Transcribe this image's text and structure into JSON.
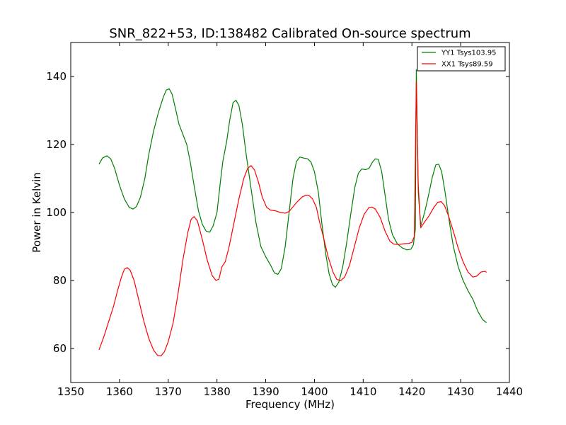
{
  "chart_data": {
    "type": "line",
    "title": "SNR_822+53, ID:138482 Calibrated On-source spectrum",
    "xlabel": "Frequency (MHz)",
    "ylabel": "Power in Kelvin",
    "xlim": [
      1350,
      1440
    ],
    "ylim": [
      50,
      150
    ],
    "xticks": [
      1350,
      1360,
      1370,
      1380,
      1390,
      1400,
      1410,
      1420,
      1430,
      1440
    ],
    "yticks": [
      60,
      80,
      100,
      120,
      140
    ],
    "grid": false,
    "legend_position": "top-right",
    "series": [
      {
        "name": "YY1 Tsys103.95",
        "color": "#008000",
        "points": [
          [
            1355.8,
            114.2
          ],
          [
            1356.5,
            116.0
          ],
          [
            1357.4,
            116.7
          ],
          [
            1358.2,
            115.8
          ],
          [
            1359.0,
            113.0
          ],
          [
            1360.0,
            108.0
          ],
          [
            1361.0,
            104.0
          ],
          [
            1362.0,
            101.5
          ],
          [
            1362.8,
            101.0
          ],
          [
            1363.5,
            101.8
          ],
          [
            1364.3,
            104.5
          ],
          [
            1365.2,
            110.0
          ],
          [
            1366.0,
            117.0
          ],
          [
            1367.0,
            124.0
          ],
          [
            1368.0,
            129.5
          ],
          [
            1369.0,
            134.0
          ],
          [
            1369.6,
            136.0
          ],
          [
            1370.2,
            136.4
          ],
          [
            1370.8,
            134.8
          ],
          [
            1371.5,
            130.5
          ],
          [
            1372.2,
            126.0
          ],
          [
            1373.0,
            123.0
          ],
          [
            1373.8,
            120.0
          ],
          [
            1374.5,
            115.0
          ],
          [
            1375.3,
            108.0
          ],
          [
            1376.2,
            100.5
          ],
          [
            1377.0,
            96.5
          ],
          [
            1377.8,
            94.5
          ],
          [
            1378.5,
            94.2
          ],
          [
            1379.2,
            96.0
          ],
          [
            1380.0,
            100.0
          ],
          [
            1380.7,
            109.0
          ],
          [
            1381.2,
            115.0
          ],
          [
            1382.0,
            121.0
          ],
          [
            1382.6,
            127.0
          ],
          [
            1383.3,
            132.3
          ],
          [
            1383.9,
            133.0
          ],
          [
            1384.5,
            131.5
          ],
          [
            1385.2,
            126.0
          ],
          [
            1386.0,
            117.0
          ],
          [
            1387.0,
            107.0
          ],
          [
            1388.0,
            97.0
          ],
          [
            1389.0,
            90.0
          ],
          [
            1390.0,
            87.0
          ],
          [
            1391.0,
            84.5
          ],
          [
            1391.8,
            82.2
          ],
          [
            1392.5,
            81.8
          ],
          [
            1393.2,
            83.5
          ],
          [
            1394.0,
            90.0
          ],
          [
            1394.8,
            100.0
          ],
          [
            1395.6,
            110.0
          ],
          [
            1396.3,
            115.0
          ],
          [
            1397.0,
            116.3
          ],
          [
            1397.8,
            116.0
          ],
          [
            1398.6,
            115.8
          ],
          [
            1399.3,
            114.8
          ],
          [
            1400.0,
            112.0
          ],
          [
            1400.8,
            106.0
          ],
          [
            1401.5,
            97.0
          ],
          [
            1402.3,
            88.0
          ],
          [
            1403.0,
            82.0
          ],
          [
            1403.7,
            78.8
          ],
          [
            1404.3,
            78.0
          ],
          [
            1405.0,
            79.5
          ],
          [
            1405.8,
            84.0
          ],
          [
            1406.6,
            91.0
          ],
          [
            1407.5,
            100.0
          ],
          [
            1408.3,
            107.5
          ],
          [
            1409.0,
            111.5
          ],
          [
            1409.7,
            112.8
          ],
          [
            1410.5,
            112.6
          ],
          [
            1411.2,
            113.0
          ],
          [
            1411.9,
            114.8
          ],
          [
            1412.5,
            115.8
          ],
          [
            1413.1,
            115.6
          ],
          [
            1413.8,
            112.0
          ],
          [
            1414.5,
            105.0
          ],
          [
            1415.2,
            98.0
          ],
          [
            1416.0,
            93.5
          ],
          [
            1417.0,
            90.8
          ],
          [
            1418.0,
            89.6
          ],
          [
            1419.0,
            89.0
          ],
          [
            1419.8,
            89.2
          ],
          [
            1420.3,
            90.5
          ],
          [
            1420.7,
            95.0
          ],
          [
            1420.9,
            142.0
          ],
          [
            1421.3,
            106.0
          ],
          [
            1421.8,
            96.0
          ],
          [
            1422.6,
            100.0
          ],
          [
            1423.4,
            105.0
          ],
          [
            1424.2,
            110.5
          ],
          [
            1424.9,
            114.0
          ],
          [
            1425.5,
            114.2
          ],
          [
            1426.1,
            112.0
          ],
          [
            1426.8,
            106.0
          ],
          [
            1427.6,
            98.0
          ],
          [
            1428.5,
            90.0
          ],
          [
            1429.5,
            84.0
          ],
          [
            1430.5,
            80.0
          ],
          [
            1431.5,
            77.0
          ],
          [
            1432.5,
            74.5
          ],
          [
            1433.5,
            71.0
          ],
          [
            1434.5,
            68.5
          ],
          [
            1435.3,
            67.6
          ]
        ]
      },
      {
        "name": "XX1 Tsys89.59",
        "color": "#ff0000",
        "points": [
          [
            1355.8,
            59.6
          ],
          [
            1356.8,
            63.5
          ],
          [
            1357.8,
            68.0
          ],
          [
            1358.8,
            72.5
          ],
          [
            1359.6,
            77.0
          ],
          [
            1360.4,
            81.0
          ],
          [
            1361.0,
            83.3
          ],
          [
            1361.6,
            83.8
          ],
          [
            1362.2,
            83.0
          ],
          [
            1363.0,
            80.0
          ],
          [
            1364.0,
            74.0
          ],
          [
            1365.0,
            68.0
          ],
          [
            1366.0,
            63.0
          ],
          [
            1367.0,
            59.5
          ],
          [
            1367.8,
            58.0
          ],
          [
            1368.5,
            57.8
          ],
          [
            1369.2,
            59.0
          ],
          [
            1370.0,
            62.0
          ],
          [
            1371.0,
            67.5
          ],
          [
            1372.0,
            76.0
          ],
          [
            1373.0,
            86.0
          ],
          [
            1374.0,
            94.0
          ],
          [
            1374.7,
            98.0
          ],
          [
            1375.3,
            98.8
          ],
          [
            1376.0,
            97.5
          ],
          [
            1377.0,
            92.0
          ],
          [
            1378.0,
            86.0
          ],
          [
            1379.0,
            81.5
          ],
          [
            1379.8,
            80.0
          ],
          [
            1380.4,
            80.4
          ],
          [
            1381.0,
            84.0
          ],
          [
            1381.7,
            85.5
          ],
          [
            1382.5,
            90.0
          ],
          [
            1383.5,
            97.0
          ],
          [
            1384.5,
            104.0
          ],
          [
            1385.5,
            110.0
          ],
          [
            1386.3,
            113.0
          ],
          [
            1387.0,
            113.8
          ],
          [
            1387.7,
            112.5
          ],
          [
            1388.5,
            109.0
          ],
          [
            1389.3,
            104.5
          ],
          [
            1390.2,
            101.5
          ],
          [
            1391.0,
            100.7
          ],
          [
            1392.0,
            100.5
          ],
          [
            1393.0,
            100.0
          ],
          [
            1394.0,
            99.8
          ],
          [
            1394.8,
            100.3
          ],
          [
            1395.5,
            101.5
          ],
          [
            1396.5,
            103.2
          ],
          [
            1397.5,
            104.6
          ],
          [
            1398.3,
            105.1
          ],
          [
            1398.9,
            105.0
          ],
          [
            1399.6,
            104.0
          ],
          [
            1400.4,
            101.5
          ],
          [
            1401.0,
            97.5
          ],
          [
            1401.8,
            93.0
          ],
          [
            1402.8,
            87.0
          ],
          [
            1403.8,
            82.5
          ],
          [
            1404.6,
            80.3
          ],
          [
            1405.4,
            80.0
          ],
          [
            1406.2,
            81.0
          ],
          [
            1407.2,
            84.5
          ],
          [
            1408.2,
            90.0
          ],
          [
            1409.2,
            95.5
          ],
          [
            1410.2,
            99.5
          ],
          [
            1411.2,
            101.5
          ],
          [
            1411.8,
            101.6
          ],
          [
            1412.5,
            101.0
          ],
          [
            1413.5,
            98.5
          ],
          [
            1414.5,
            94.5
          ],
          [
            1415.5,
            91.5
          ],
          [
            1416.3,
            90.7
          ],
          [
            1417.2,
            90.6
          ],
          [
            1418.3,
            90.8
          ],
          [
            1419.3,
            90.9
          ],
          [
            1420.0,
            91.2
          ],
          [
            1420.5,
            93.0
          ],
          [
            1420.9,
            138.5
          ],
          [
            1421.3,
            108.0
          ],
          [
            1421.8,
            95.5
          ],
          [
            1422.5,
            97.0
          ],
          [
            1423.5,
            99.0
          ],
          [
            1424.5,
            101.5
          ],
          [
            1425.3,
            103.0
          ],
          [
            1426.0,
            103.2
          ],
          [
            1426.7,
            102.0
          ],
          [
            1427.5,
            99.0
          ],
          [
            1428.5,
            94.5
          ],
          [
            1429.5,
            89.5
          ],
          [
            1430.5,
            85.5
          ],
          [
            1431.5,
            82.5
          ],
          [
            1432.5,
            81.0
          ],
          [
            1433.3,
            81.3
          ],
          [
            1434.2,
            82.5
          ],
          [
            1435.0,
            82.7
          ],
          [
            1435.3,
            82.4
          ]
        ]
      }
    ]
  }
}
